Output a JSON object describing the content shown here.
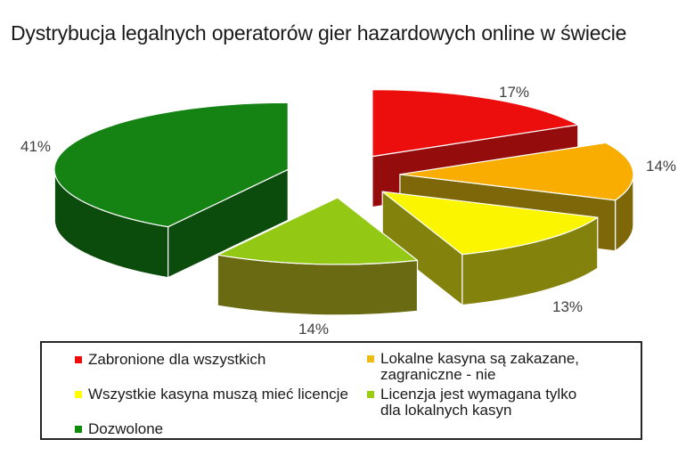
{
  "title": "Dystrybucja legalnych operatorów gier hazardowych online w świecie",
  "chart_data": {
    "type": "pie",
    "is_3d": true,
    "exploded": true,
    "start_angle_deg": 90,
    "direction": "clockwise",
    "title": "Dystrybucja legalnych operatorów gier hazardowych online w świecie",
    "legend_position": "bottom",
    "slices": [
      {
        "id": "banned-for-all",
        "label": "Zabronione dla wszystkich",
        "value": 17,
        "pct_label": "17%",
        "color": "#ec0d0d",
        "side_color": "#940c0c"
      },
      {
        "id": "local-banned-foreign-ok",
        "label": "Lokalne kasyna są zakazane, zagraniczne - nie",
        "value": 14,
        "pct_label": "14%",
        "color": "#f8ad00",
        "side_color": "#7d6708"
      },
      {
        "id": "all-need-license",
        "label": "Wszystkie kasyna muszą mieć licencje",
        "value": 13,
        "pct_label": "13%",
        "color": "#fbf500",
        "side_color": "#82820c"
      },
      {
        "id": "license-local-only",
        "label": "Licenzja jest wymagana tylko dla lokalnych kasyn",
        "value": 14,
        "pct_label": "14%",
        "color": "#93c914",
        "side_color": "#6a6a12"
      },
      {
        "id": "allowed",
        "label": "Dozwolone",
        "value": 41,
        "pct_label": "41%",
        "color": "#148314",
        "side_color": "#0b4b0b"
      }
    ],
    "legend": {
      "col1": [
        {
          "label": "Zabronione dla wszystkich",
          "color": "#ee0c0c"
        },
        {
          "label": "Wszystkie kasyna muszą mieć licencje",
          "color": "#ffff00"
        },
        {
          "label": "Dozwolone",
          "color": "#0c8a0c"
        }
      ],
      "col2": [
        {
          "label": "Lokalne kasyna są zakazane,\nzagraniczne - nie",
          "color": "#eebb11"
        },
        {
          "label": "Licenzja jest wymagana tylko\ndla lokalnych kasyn",
          "color": "#9acd11"
        }
      ]
    }
  }
}
